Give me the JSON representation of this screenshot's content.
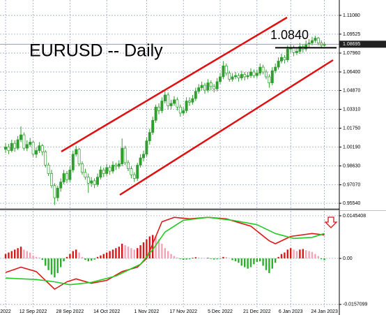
{
  "chart_data": [
    {
      "type": "candlestick",
      "title": "EURUSD -- Daily",
      "categories": [
        "2022",
        null,
        null,
        null,
        null,
        null,
        null,
        null,
        null,
        "12 Sep 2022",
        null,
        null,
        null,
        null,
        null,
        null,
        null,
        null,
        null,
        null,
        null,
        "28 Sep 2022",
        null,
        null,
        null,
        null,
        null,
        null,
        null,
        null,
        null,
        null,
        null,
        "14 Oct 2022",
        null,
        null,
        null,
        null,
        null,
        null,
        null,
        null,
        null,
        null,
        null,
        null,
        "1 Nov 2022",
        null,
        null,
        null,
        null,
        null,
        null,
        null,
        null,
        null,
        null,
        null,
        "17 Nov 2022",
        null,
        null,
        null,
        null,
        null,
        null,
        null,
        null,
        null,
        null,
        null,
        "5 Dec 2022",
        null,
        null,
        null,
        null,
        null,
        null,
        null,
        null,
        null,
        null,
        null,
        "21 Dec 2022",
        null,
        null,
        null,
        null,
        null,
        null,
        null,
        null,
        null,
        null,
        "6 Jan 2023",
        null,
        null,
        null,
        null,
        null,
        null,
        null,
        null,
        null,
        null,
        "24 Jan 2023"
      ],
      "ohlc": [
        [
          1.0,
          1.005,
          0.997,
          1.002
        ],
        [
          1.002,
          1.0045,
          0.996,
          0.999
        ],
        [
          0.999,
          1.008,
          0.9975,
          1.005
        ],
        [
          1.005,
          1.0075,
          0.998,
          1.001
        ],
        [
          1.001,
          1.011,
          0.9995,
          1.008
        ],
        [
          1.008,
          1.019,
          1.006,
          1.012
        ],
        [
          1.012,
          1.014,
          0.999,
          1.001
        ],
        [
          1.001,
          1.0075,
          0.9985,
          1.004
        ],
        [
          1.004,
          1.0095,
          1.002,
          1.006
        ],
        [
          1.006,
          1.007,
          0.994,
          0.996
        ],
        [
          0.996,
          1.0015,
          0.993,
          0.999
        ],
        [
          0.999,
          1.006,
          0.997,
          1.003
        ],
        [
          1.003,
          1.0045,
          0.995,
          0.998
        ],
        [
          0.998,
          0.9995,
          0.985,
          0.987
        ],
        [
          0.987,
          0.989,
          0.978,
          0.98
        ],
        [
          0.98,
          0.983,
          0.968,
          0.97
        ],
        [
          0.97,
          0.972,
          0.954,
          0.96
        ],
        [
          0.96,
          0.97,
          0.957,
          0.968
        ],
        [
          0.968,
          0.976,
          0.965,
          0.973
        ],
        [
          0.973,
          0.983,
          0.971,
          0.98
        ],
        [
          0.98,
          0.982,
          0.972,
          0.975
        ],
        [
          0.975,
          0.986,
          0.973,
          0.983
        ],
        [
          0.983,
          0.999,
          0.981,
          0.996
        ],
        [
          0.996,
          1.003,
          0.994,
          1.0
        ],
        [
          1.0,
          1.001,
          0.986,
          0.988
        ],
        [
          0.988,
          0.99,
          0.979,
          0.981
        ],
        [
          0.981,
          0.984,
          0.975,
          0.977
        ],
        [
          0.977,
          0.98,
          0.964,
          0.972
        ],
        [
          0.972,
          0.977,
          0.969,
          0.974
        ],
        [
          0.974,
          0.976,
          0.968,
          0.971
        ],
        [
          0.971,
          0.98,
          0.969,
          0.977
        ],
        [
          0.977,
          0.986,
          0.975,
          0.983
        ],
        [
          0.983,
          0.985,
          0.977,
          0.98
        ],
        [
          0.98,
          0.988,
          0.978,
          0.985
        ],
        [
          0.985,
          0.987,
          0.979,
          0.982
        ],
        [
          0.982,
          0.99,
          0.98,
          0.987
        ],
        [
          0.987,
          0.989,
          0.983,
          0.986
        ],
        [
          0.986,
          0.991,
          0.984,
          0.988
        ],
        [
          0.988,
          1.009,
          0.986,
          1.001
        ],
        [
          1.001,
          1.003,
          0.987,
          0.989
        ],
        [
          0.989,
          0.991,
          0.982,
          0.984
        ],
        [
          0.984,
          0.986,
          0.976,
          0.979
        ],
        [
          0.979,
          0.981,
          0.973,
          0.976
        ],
        [
          0.976,
          0.989,
          0.974,
          0.987
        ],
        [
          0.987,
          0.996,
          0.985,
          0.993
        ],
        [
          0.993,
          0.999,
          0.99,
          0.996
        ],
        [
          0.996,
          1.01,
          0.994,
          1.007
        ],
        [
          1.007,
          1.017,
          1.004,
          1.014
        ],
        [
          1.014,
          1.027,
          1.012,
          1.024
        ],
        [
          1.024,
          1.037,
          1.022,
          1.035
        ],
        [
          1.035,
          1.038,
          1.029,
          1.032
        ],
        [
          1.032,
          1.043,
          1.03,
          1.04
        ],
        [
          1.04,
          1.048,
          1.038,
          1.045
        ],
        [
          1.045,
          1.047,
          1.033,
          1.036
        ],
        [
          1.036,
          1.041,
          1.033,
          1.038
        ],
        [
          1.038,
          1.044,
          1.036,
          1.041
        ],
        [
          1.041,
          1.043,
          1.032,
          1.035
        ],
        [
          1.035,
          1.037,
          1.027,
          1.03
        ],
        [
          1.03,
          1.035,
          1.028,
          1.032
        ],
        [
          1.032,
          1.043,
          1.03,
          1.04
        ],
        [
          1.04,
          1.043,
          1.036,
          1.039
        ],
        [
          1.039,
          1.045,
          1.037,
          1.042
        ],
        [
          1.042,
          1.051,
          1.04,
          1.048
        ],
        [
          1.048,
          1.054,
          1.046,
          1.051
        ],
        [
          1.051,
          1.056,
          1.049,
          1.053
        ],
        [
          1.053,
          1.055,
          1.046,
          1.049
        ],
        [
          1.049,
          1.058,
          1.047,
          1.055
        ],
        [
          1.055,
          1.057,
          1.049,
          1.052
        ],
        [
          1.052,
          1.054,
          1.047,
          1.05
        ],
        [
          1.05,
          1.059,
          1.048,
          1.056
        ],
        [
          1.056,
          1.063,
          1.054,
          1.06
        ],
        [
          1.06,
          1.073,
          1.058,
          1.069
        ],
        [
          1.069,
          1.071,
          1.061,
          1.063
        ],
        [
          1.063,
          1.065,
          1.056,
          1.058
        ],
        [
          1.058,
          1.063,
          1.056,
          1.06
        ],
        [
          1.06,
          1.064,
          1.058,
          1.061
        ],
        [
          1.061,
          1.063,
          1.056,
          1.059
        ],
        [
          1.059,
          1.065,
          1.057,
          1.062
        ],
        [
          1.062,
          1.064,
          1.057,
          1.06
        ],
        [
          1.06,
          1.064,
          1.058,
          1.061
        ],
        [
          1.061,
          1.067,
          1.059,
          1.064
        ],
        [
          1.064,
          1.066,
          1.059,
          1.061
        ],
        [
          1.061,
          1.066,
          1.059,
          1.063
        ],
        [
          1.063,
          1.071,
          1.061,
          1.068
        ],
        [
          1.068,
          1.07,
          1.062,
          1.064
        ],
        [
          1.064,
          1.066,
          1.058,
          1.06
        ],
        [
          1.06,
          1.062,
          1.051,
          1.055
        ],
        [
          1.055,
          1.068,
          1.053,
          1.065
        ],
        [
          1.065,
          1.071,
          1.063,
          1.068
        ],
        [
          1.068,
          1.076,
          1.066,
          1.073
        ],
        [
          1.073,
          1.079,
          1.071,
          1.076
        ],
        [
          1.076,
          1.078,
          1.071,
          1.074
        ],
        [
          1.074,
          1.086,
          1.072,
          1.083
        ],
        [
          1.083,
          1.087,
          1.08,
          1.084
        ],
        [
          1.084,
          1.086,
          1.077,
          1.08
        ],
        [
          1.08,
          1.084,
          1.078,
          1.081
        ],
        [
          1.081,
          1.088,
          1.079,
          1.085
        ],
        [
          1.085,
          1.087,
          1.08,
          1.083
        ],
        [
          1.083,
          1.09,
          1.081,
          1.087
        ],
        [
          1.087,
          1.091,
          1.084,
          1.088
        ],
        [
          1.088,
          1.093,
          1.086,
          1.09
        ],
        [
          1.09,
          1.094,
          1.088,
          1.092
        ],
        [
          1.092,
          1.093,
          1.086,
          1.088
        ],
        [
          1.088,
          1.09,
          1.084,
          1.086
        ],
        [
          1.086,
          1.089,
          1.085,
          1.087
        ]
      ],
      "up_color": "#2f9e2f",
      "down_color": "#ffffff",
      "outline_color": "#2f9e2f",
      "ylim": [
        0.9514,
        1.1235
      ],
      "yticks": [
        {
          "value": 1.1108,
          "label": "1.11080"
        },
        1.09525,
        {
          "value": 1.0796,
          "label": "1.07960"
        },
        {
          "value": 1.064,
          "label": "1.06400"
        },
        {
          "value": 1.0487,
          "label": "1.04870"
        },
        {
          "value": 1.0331,
          "label": "1.03310"
        },
        {
          "value": 1.0175,
          "label": "1.01750"
        },
        {
          "value": 1.0019,
          "label": "1.00190"
        },
        {
          "value": 0.9863,
          "label": "0.98630"
        },
        {
          "value": 0.9707,
          "label": "0.97070"
        },
        {
          "value": 0.9554,
          "label": "0.95540"
        }
      ],
      "last_price": 1.08695,
      "level": {
        "value": 1.084,
        "label": "1.0840"
      },
      "grid": true
    },
    {
      "type": "macd",
      "values": [
        0.0015,
        0.002,
        0.0025,
        0.003,
        0.0035,
        0.004,
        0.003,
        0.0025,
        0.002,
        0.001,
        0.0005,
        0.0003,
        -0.0005,
        -0.0025,
        -0.004,
        -0.0055,
        -0.0065,
        -0.005,
        -0.003,
        -0.001,
        0.0005,
        0.0015,
        0.0025,
        0.003,
        0.002,
        0.0005,
        -0.0005,
        -0.001,
        -0.0008,
        -0.0004,
        0.0005,
        0.001,
        0.0015,
        0.002,
        0.0025,
        0.003,
        0.0035,
        0.004,
        0.005,
        0.0045,
        0.004,
        0.0035,
        0.003,
        0.0035,
        0.0045,
        0.0055,
        0.0065,
        0.0075,
        0.008,
        0.0075,
        0.0065,
        0.005,
        0.0035,
        0.0025,
        0.0015,
        0.0008,
        0.0003,
        -0.0002,
        -0.0005,
        -0.0004,
        -0.0003,
        0.0002,
        0.0004,
        0.0003,
        0.0002,
        0.0001,
        0.0002,
        -0.0002,
        -0.0004,
        -0.0003,
        0.0001,
        0.0005,
        0.0004,
        0.0001,
        -0.0006,
        -0.001,
        -0.0015,
        -0.0025,
        -0.003,
        -0.0035,
        -0.003,
        -0.002,
        -0.0012,
        -0.001,
        -0.0025,
        -0.004,
        -0.005,
        -0.0035,
        -0.0015,
        0.0005,
        0.0015,
        0.002,
        0.003,
        0.0035,
        0.003,
        0.0025,
        0.003,
        0.0032,
        0.0028,
        0.0025,
        0.0022,
        0.0015,
        0.0008,
        -0.0003,
        -0.0006
      ],
      "rising_color": "#d81818",
      "falling_color": "#f4a3b6",
      "negative_color": "#2bb02b",
      "lines": [
        {
          "color": "#e01818",
          "x": [
            0,
            5,
            10,
            16,
            20,
            23,
            28,
            33,
            38,
            43,
            46,
            51,
            55,
            60,
            66,
            72,
            80,
            86,
            88,
            93,
            100,
            104
          ],
          "values": [
            -0.0048,
            -0.003,
            -0.0045,
            -0.0105,
            -0.008,
            -0.007,
            -0.0085,
            -0.0075,
            -0.0045,
            -0.003,
            0.0,
            0.0125,
            0.014,
            0.0135,
            0.014,
            0.0135,
            0.011,
            0.006,
            0.005,
            0.0075,
            0.0085,
            0.008
          ]
        },
        {
          "color": "#22cc22",
          "x": [
            0,
            10,
            16,
            21,
            28,
            36,
            44,
            48,
            52,
            58,
            66,
            74,
            82,
            88,
            94,
            100,
            104
          ],
          "values": [
            -0.0067,
            -0.0072,
            -0.008,
            -0.009,
            -0.0082,
            -0.006,
            -0.002,
            0.003,
            0.009,
            0.013,
            0.014,
            0.013,
            0.0115,
            0.0085,
            0.0068,
            0.0072,
            0.0085
          ]
        }
      ],
      "ylim": [
        -0.0167,
        0.0162
      ],
      "yticks": [
        0.0145408,
        {
          "value": 0,
          "label": "0.00"
        },
        -0.0157099
      ],
      "grid": true
    }
  ]
}
